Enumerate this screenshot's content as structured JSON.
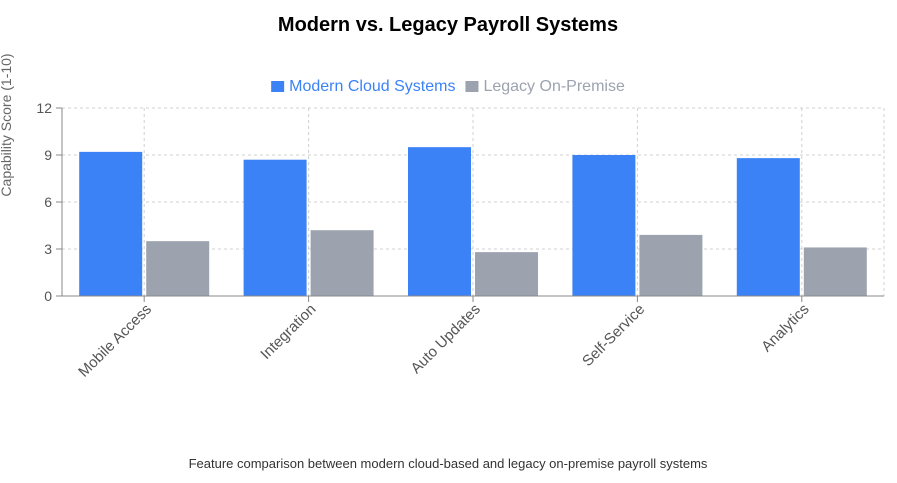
{
  "chart_data": {
    "type": "bar",
    "title": "Modern vs. Legacy Payroll Systems",
    "ylabel": "Capability Score (1-10)",
    "xlabel": "",
    "categories": [
      "Mobile Access",
      "Integration",
      "Auto Updates",
      "Self-Service",
      "Analytics"
    ],
    "series": [
      {
        "name": "Modern Cloud Systems",
        "color": "#3b82f6",
        "values": [
          9.2,
          8.7,
          9.5,
          9.0,
          8.8
        ]
      },
      {
        "name": "Legacy On-Premise",
        "color": "#9ca3af",
        "values": [
          3.5,
          4.2,
          2.8,
          3.9,
          3.1
        ]
      }
    ],
    "ylim": [
      0,
      12
    ],
    "yticks": [
      "0",
      "3",
      "6",
      "9",
      "12"
    ],
    "grid": true,
    "legend_position": "top",
    "caption": "Feature comparison between modern cloud-based and legacy on-premise payroll systems"
  }
}
